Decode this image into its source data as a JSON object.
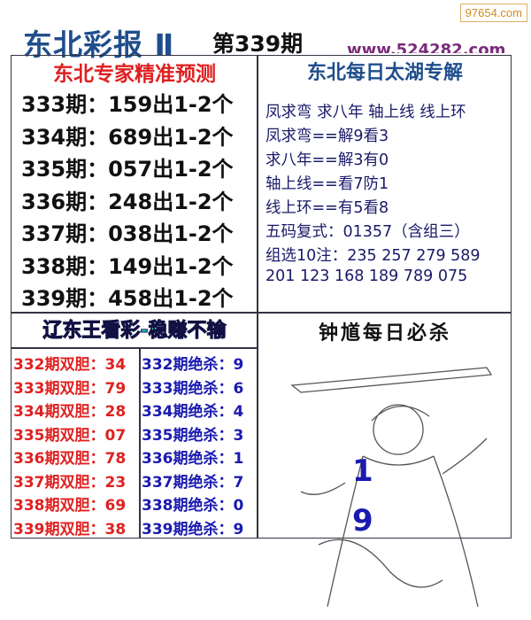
{
  "watermark": "97654.com",
  "header": {
    "title": "东北彩报 Ⅱ",
    "issue": "第339期",
    "site": "www.524282.com"
  },
  "left_top": {
    "title": "东北专家精准预测",
    "rows": [
      "333期：159出1-2个",
      "334期：689出1-2个",
      "335期：057出1-2个",
      "336期：248出1-2个",
      "337期：038出1-2个",
      "338期：149出1-2个",
      "339期：458出1-2个"
    ]
  },
  "right_top": {
    "title": "东北每日太湖专解",
    "lines": [
      "凤求弯 求八年 轴上线 线上环",
      "凤求弯==解9看3",
      "求八年==解3有0",
      "轴上线==看7防1",
      "线上环==有5看8",
      "五码复式：01357（含组三）",
      "组选10注：235 257 279 589",
      "201 123 168 189 789 075"
    ]
  },
  "left_bottom": {
    "title": "辽东王看彩-稳赚不输",
    "double": [
      "332期双胆：34",
      "333期双胆：79",
      "334期双胆：28",
      "335期双胆：07",
      "336期双胆：78",
      "337期双胆：23",
      "338期双胆：69",
      "339期双胆：38"
    ],
    "kill": [
      "332期绝杀：9",
      "333期绝杀：6",
      "334期绝杀：4",
      "335期绝杀：3",
      "336期绝杀：1",
      "337期绝杀：7",
      "338期绝杀：0",
      "339期绝杀：9"
    ]
  },
  "right_bottom": {
    "title": "钟馗每日必杀",
    "numbers": [
      "1",
      "9"
    ]
  },
  "colors": {
    "red": "#e02020",
    "blue": "#1a1ab0",
    "navy": "#1f4e8c",
    "cyan": "#20d0c0"
  }
}
